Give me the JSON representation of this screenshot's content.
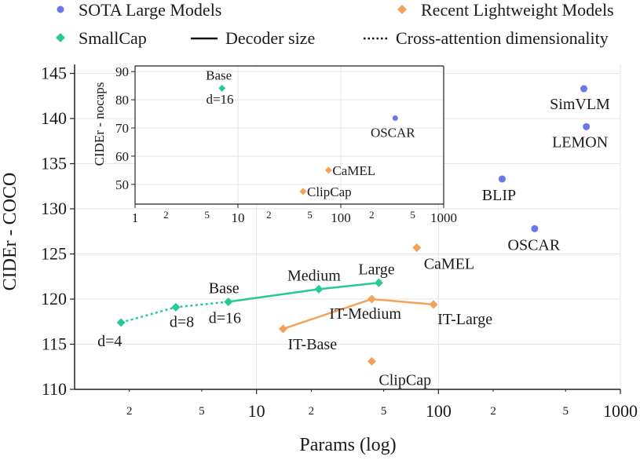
{
  "legend": {
    "sota": "SOTA Large Models",
    "recent": "Recent Lightweight Models",
    "smallcap": "SmallCap",
    "decoder": "Decoder size",
    "crossattn": "Cross-attention dimensionality"
  },
  "colors": {
    "sota": "#6b77e8",
    "recent": "#f4a259",
    "smallcap": "#27c99b",
    "grid": "#e6e6e6",
    "axis": "#222222"
  },
  "chart_data": [
    {
      "id": "main",
      "type": "scatter",
      "title": "",
      "xlabel": "Params (log)",
      "ylabel": "CIDEr - COCO",
      "xscale": "log",
      "xlim": [
        1,
        1000
      ],
      "ylim": [
        110,
        146
      ],
      "x_ticks_major": [
        {
          "v": 10,
          "label": "10"
        },
        {
          "v": 100,
          "label": "100"
        },
        {
          "v": 1000,
          "label": "1000"
        }
      ],
      "x_ticks_minor": [
        {
          "v": 2,
          "label": "2"
        },
        {
          "v": 5,
          "label": "5"
        },
        {
          "v": 20,
          "label": "2"
        },
        {
          "v": 50,
          "label": "5"
        },
        {
          "v": 200,
          "label": "2"
        },
        {
          "v": 500,
          "label": "5"
        }
      ],
      "y_ticks": [
        110,
        115,
        120,
        125,
        130,
        135,
        140,
        145
      ],
      "series": [
        {
          "name": "SOTA Large Models",
          "marker": "circle",
          "connect": "none",
          "points": [
            {
              "x": 630,
              "y": 143.3,
              "label": "SimVLM"
            },
            {
              "x": 650,
              "y": 139.1,
              "label": "LEMON"
            },
            {
              "x": 224,
              "y": 133.3,
              "label": "BLIP"
            },
            {
              "x": 338,
              "y": 127.8,
              "label": "OSCAR"
            }
          ]
        },
        {
          "name": "Recent Lightweight Models",
          "marker": "diamond",
          "connect": "none",
          "points": [
            {
              "x": 76,
              "y": 125.7,
              "label": "CaMEL"
            },
            {
              "x": 43,
              "y": 113.1,
              "label": "ClipCap"
            }
          ]
        },
        {
          "name": "IT-Base / IT-Medium / IT-Large",
          "marker": "diamond",
          "connect": "solid",
          "points": [
            {
              "x": 14,
              "y": 116.7,
              "label": "IT-Base"
            },
            {
              "x": 43,
              "y": 120.0,
              "label": "IT-Medium"
            },
            {
              "x": 94,
              "y": 119.4,
              "label": "IT-Large"
            }
          ]
        },
        {
          "name": "SmallCap (cross-attention dimensionality)",
          "marker": "diamond",
          "connect": "dotted",
          "points": [
            {
              "x": 1.8,
              "y": 117.4,
              "label": "d=4"
            },
            {
              "x": 3.6,
              "y": 119.1,
              "label": "d=8"
            },
            {
              "x": 7.0,
              "y": 119.7,
              "label": "d=16"
            }
          ]
        },
        {
          "name": "SmallCap (decoder size)",
          "marker": "diamond",
          "connect": "solid",
          "points": [
            {
              "x": 7.0,
              "y": 119.7,
              "label": "Base"
            },
            {
              "x": 22,
              "y": 121.1,
              "label": "Medium"
            },
            {
              "x": 47,
              "y": 121.8,
              "label": "Large"
            }
          ]
        }
      ]
    },
    {
      "id": "inset",
      "type": "scatter",
      "title": "",
      "xlabel": "",
      "ylabel": "CIDEr - nocaps",
      "xscale": "log",
      "xlim": [
        1,
        1000
      ],
      "ylim": [
        43,
        92
      ],
      "x_ticks_major": [
        {
          "v": 1,
          "label": "1"
        },
        {
          "v": 10,
          "label": "10"
        },
        {
          "v": 100,
          "label": "100"
        },
        {
          "v": 1000,
          "label": "1000"
        }
      ],
      "x_ticks_minor": [
        {
          "v": 2,
          "label": "2"
        },
        {
          "v": 5,
          "label": "5"
        },
        {
          "v": 20,
          "label": "2"
        },
        {
          "v": 50,
          "label": "5"
        },
        {
          "v": 200,
          "label": "2"
        },
        {
          "v": 500,
          "label": "5"
        }
      ],
      "y_ticks": [
        50,
        60,
        70,
        80,
        90
      ],
      "series": [
        {
          "name": "SOTA Large Models",
          "marker": "circle",
          "points": [
            {
              "x": 338,
              "y": 73.5,
              "label": "OSCAR"
            }
          ]
        },
        {
          "name": "Recent Lightweight Models",
          "marker": "diamond",
          "points": [
            {
              "x": 76,
              "y": 55,
              "label": "CaMEL"
            },
            {
              "x": 43,
              "y": 47.5,
              "label": "ClipCap"
            }
          ]
        },
        {
          "name": "SmallCap",
          "marker": "diamond",
          "points": [
            {
              "x": 7.0,
              "y": 84.1,
              "label": "Base"
            }
          ]
        }
      ],
      "annotations": [
        "d=16"
      ]
    }
  ]
}
